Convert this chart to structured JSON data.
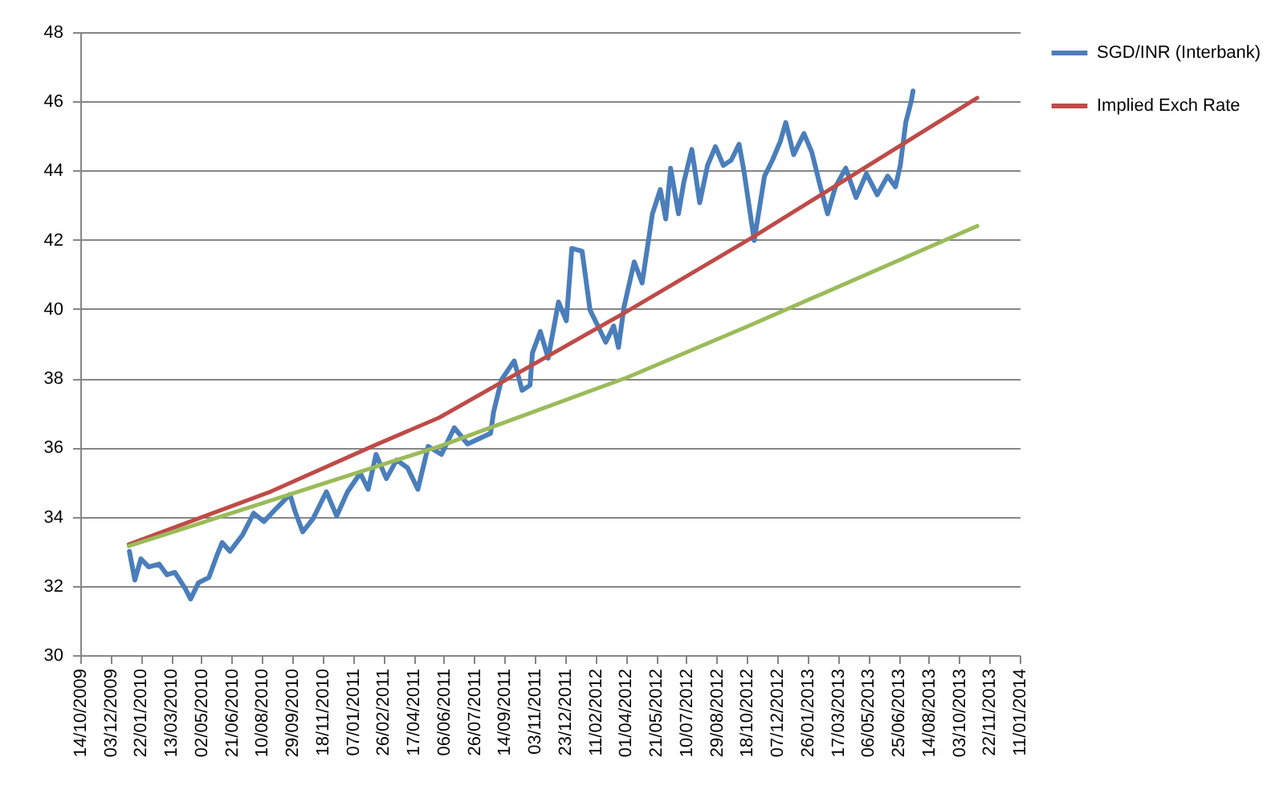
{
  "chart_data": {
    "type": "line",
    "xlim": [
      "2009-10-14",
      "2014-01-11"
    ],
    "xticks": [
      {
        "value": "2009-10-14",
        "label": "14/10/2009"
      },
      {
        "value": "2009-12-03",
        "label": "03/12/2009"
      },
      {
        "value": "2010-01-22",
        "label": "22/01/2010"
      },
      {
        "value": "2010-03-13",
        "label": "13/03/2010"
      },
      {
        "value": "2010-05-02",
        "label": "02/05/2010"
      },
      {
        "value": "2010-06-21",
        "label": "21/06/2010"
      },
      {
        "value": "2010-08-10",
        "label": "10/08/2010"
      },
      {
        "value": "2010-09-29",
        "label": "29/09/2010"
      },
      {
        "value": "2010-11-18",
        "label": "18/11/2010"
      },
      {
        "value": "2011-01-07",
        "label": "07/01/2011"
      },
      {
        "value": "2011-02-26",
        "label": "26/02/2011"
      },
      {
        "value": "2011-04-17",
        "label": "17/04/2011"
      },
      {
        "value": "2011-06-06",
        "label": "06/06/2011"
      },
      {
        "value": "2011-07-26",
        "label": "26/07/2011"
      },
      {
        "value": "2011-09-14",
        "label": "14/09/2011"
      },
      {
        "value": "2011-11-03",
        "label": "03/11/2011"
      },
      {
        "value": "2011-12-23",
        "label": "23/12/2011"
      },
      {
        "value": "2012-02-11",
        "label": "11/02/2012"
      },
      {
        "value": "2012-04-01",
        "label": "01/04/2012"
      },
      {
        "value": "2012-05-21",
        "label": "21/05/2012"
      },
      {
        "value": "2012-07-10",
        "label": "10/07/2012"
      },
      {
        "value": "2012-08-29",
        "label": "29/08/2012"
      },
      {
        "value": "2012-10-18",
        "label": "18/10/2012"
      },
      {
        "value": "2012-12-07",
        "label": "07/12/2012"
      },
      {
        "value": "2013-01-26",
        "label": "26/01/2013"
      },
      {
        "value": "2013-03-17",
        "label": "17/03/2013"
      },
      {
        "value": "2013-05-06",
        "label": "06/05/2013"
      },
      {
        "value": "2013-06-25",
        "label": "25/06/2013"
      },
      {
        "value": "2013-08-14",
        "label": "14/08/2013"
      },
      {
        "value": "2013-10-03",
        "label": "03/10/2013"
      },
      {
        "value": "2013-11-22",
        "label": "22/11/2013"
      },
      {
        "value": "2014-01-11",
        "label": "11/01/2014"
      }
    ],
    "ylim": [
      30,
      48
    ],
    "yticks": [
      30,
      32,
      34,
      36,
      38,
      40,
      42,
      44,
      46,
      48
    ],
    "grid": "y",
    "legend": "right",
    "series": [
      {
        "name": "SGD/INR (Interbank)",
        "color": "#4a7ebb",
        "x": [
          "2010-01-03",
          "2010-01-12",
          "2010-01-22",
          "2010-02-04",
          "2010-02-21",
          "2010-03-06",
          "2010-03-19",
          "2010-04-05",
          "2010-04-14",
          "2010-04-27",
          "2010-05-14",
          "2010-05-27",
          "2010-06-05",
          "2010-06-18",
          "2010-07-09",
          "2010-07-27",
          "2010-08-13",
          "2010-09-03",
          "2010-09-25",
          "2010-10-03",
          "2010-10-16",
          "2010-11-02",
          "2010-11-24",
          "2010-12-11",
          "2010-12-29",
          "2011-01-19",
          "2011-02-01",
          "2011-02-14",
          "2011-03-03",
          "2011-03-20",
          "2011-04-07",
          "2011-04-24",
          "2011-05-11",
          "2011-06-02",
          "2011-06-23",
          "2011-07-15",
          "2011-08-22",
          "2011-08-27",
          "2011-09-09",
          "2011-09-30",
          "2011-10-13",
          "2011-10-26",
          "2011-10-30",
          "2011-11-12",
          "2011-11-25",
          "2011-12-12",
          "2011-12-25",
          "2012-01-03",
          "2012-01-20",
          "2012-02-02",
          "2012-02-15",
          "2012-02-28",
          "2012-03-12",
          "2012-03-20",
          "2012-03-29",
          "2012-04-15",
          "2012-04-28",
          "2012-05-15",
          "2012-05-28",
          "2012-06-06",
          "2012-06-14",
          "2012-06-27",
          "2012-07-06",
          "2012-07-19",
          "2012-08-01",
          "2012-08-14",
          "2012-08-27",
          "2012-09-09",
          "2012-09-22",
          "2012-10-05",
          "2012-10-13",
          "2012-10-26",
          "2012-10-30",
          "2012-11-16",
          "2012-11-29",
          "2012-12-12",
          "2012-12-21",
          "2013-01-03",
          "2013-01-20",
          "2013-02-02",
          "2013-02-15",
          "2013-02-28",
          "2013-03-13",
          "2013-03-30",
          "2013-04-16",
          "2013-05-03",
          "2013-05-21",
          "2013-06-07",
          "2013-06-20",
          "2013-06-28",
          "2013-07-07",
          "2013-07-16",
          "2013-07-19"
        ],
        "values": [
          33.0,
          32.17,
          32.78,
          32.55,
          32.63,
          32.32,
          32.39,
          31.93,
          31.62,
          32.09,
          32.24,
          32.86,
          33.25,
          33.0,
          33.48,
          34.1,
          33.86,
          34.25,
          34.64,
          34.17,
          33.56,
          33.94,
          34.72,
          34.02,
          34.72,
          35.26,
          34.79,
          35.8,
          35.1,
          35.64,
          35.41,
          34.79,
          36.03,
          35.8,
          36.57,
          36.1,
          36.41,
          37.03,
          37.96,
          38.5,
          37.65,
          37.8,
          38.73,
          39.35,
          38.58,
          40.2,
          39.66,
          41.75,
          41.67,
          39.97,
          39.51,
          39.04,
          39.51,
          38.89,
          40.05,
          41.36,
          40.75,
          42.75,
          43.45,
          42.6,
          44.07,
          42.75,
          43.68,
          44.61,
          43.07,
          44.15,
          44.69,
          44.15,
          44.3,
          44.76,
          43.99,
          42.44,
          41.98,
          43.84,
          44.3,
          44.84,
          45.39,
          44.46,
          45.07,
          44.53,
          43.61,
          42.75,
          43.53,
          44.07,
          43.22,
          43.91,
          43.3,
          43.84,
          43.53,
          44.15,
          45.39,
          46.0,
          46.3
        ]
      },
      {
        "name": "Implied Exch Rate",
        "color": "#be4b48",
        "x": [
          "2010-01-02",
          "2010-08-25",
          "2011-02-14",
          "2011-05-29",
          "2012-04-03",
          "2012-10-26",
          "2013-11-02"
        ],
        "values": [
          33.2,
          34.73,
          36.08,
          36.86,
          39.93,
          42.06,
          46.1
        ]
      },
      {
        "color": "#9bbb59",
        "x": [
          "2010-01-02",
          "2010-09-12",
          "2011-05-29",
          "2012-04-03",
          "2012-10-26",
          "2013-11-02"
        ],
        "values": [
          33.15,
          34.57,
          36.03,
          38.02,
          39.55,
          42.4
        ]
      }
    ]
  }
}
